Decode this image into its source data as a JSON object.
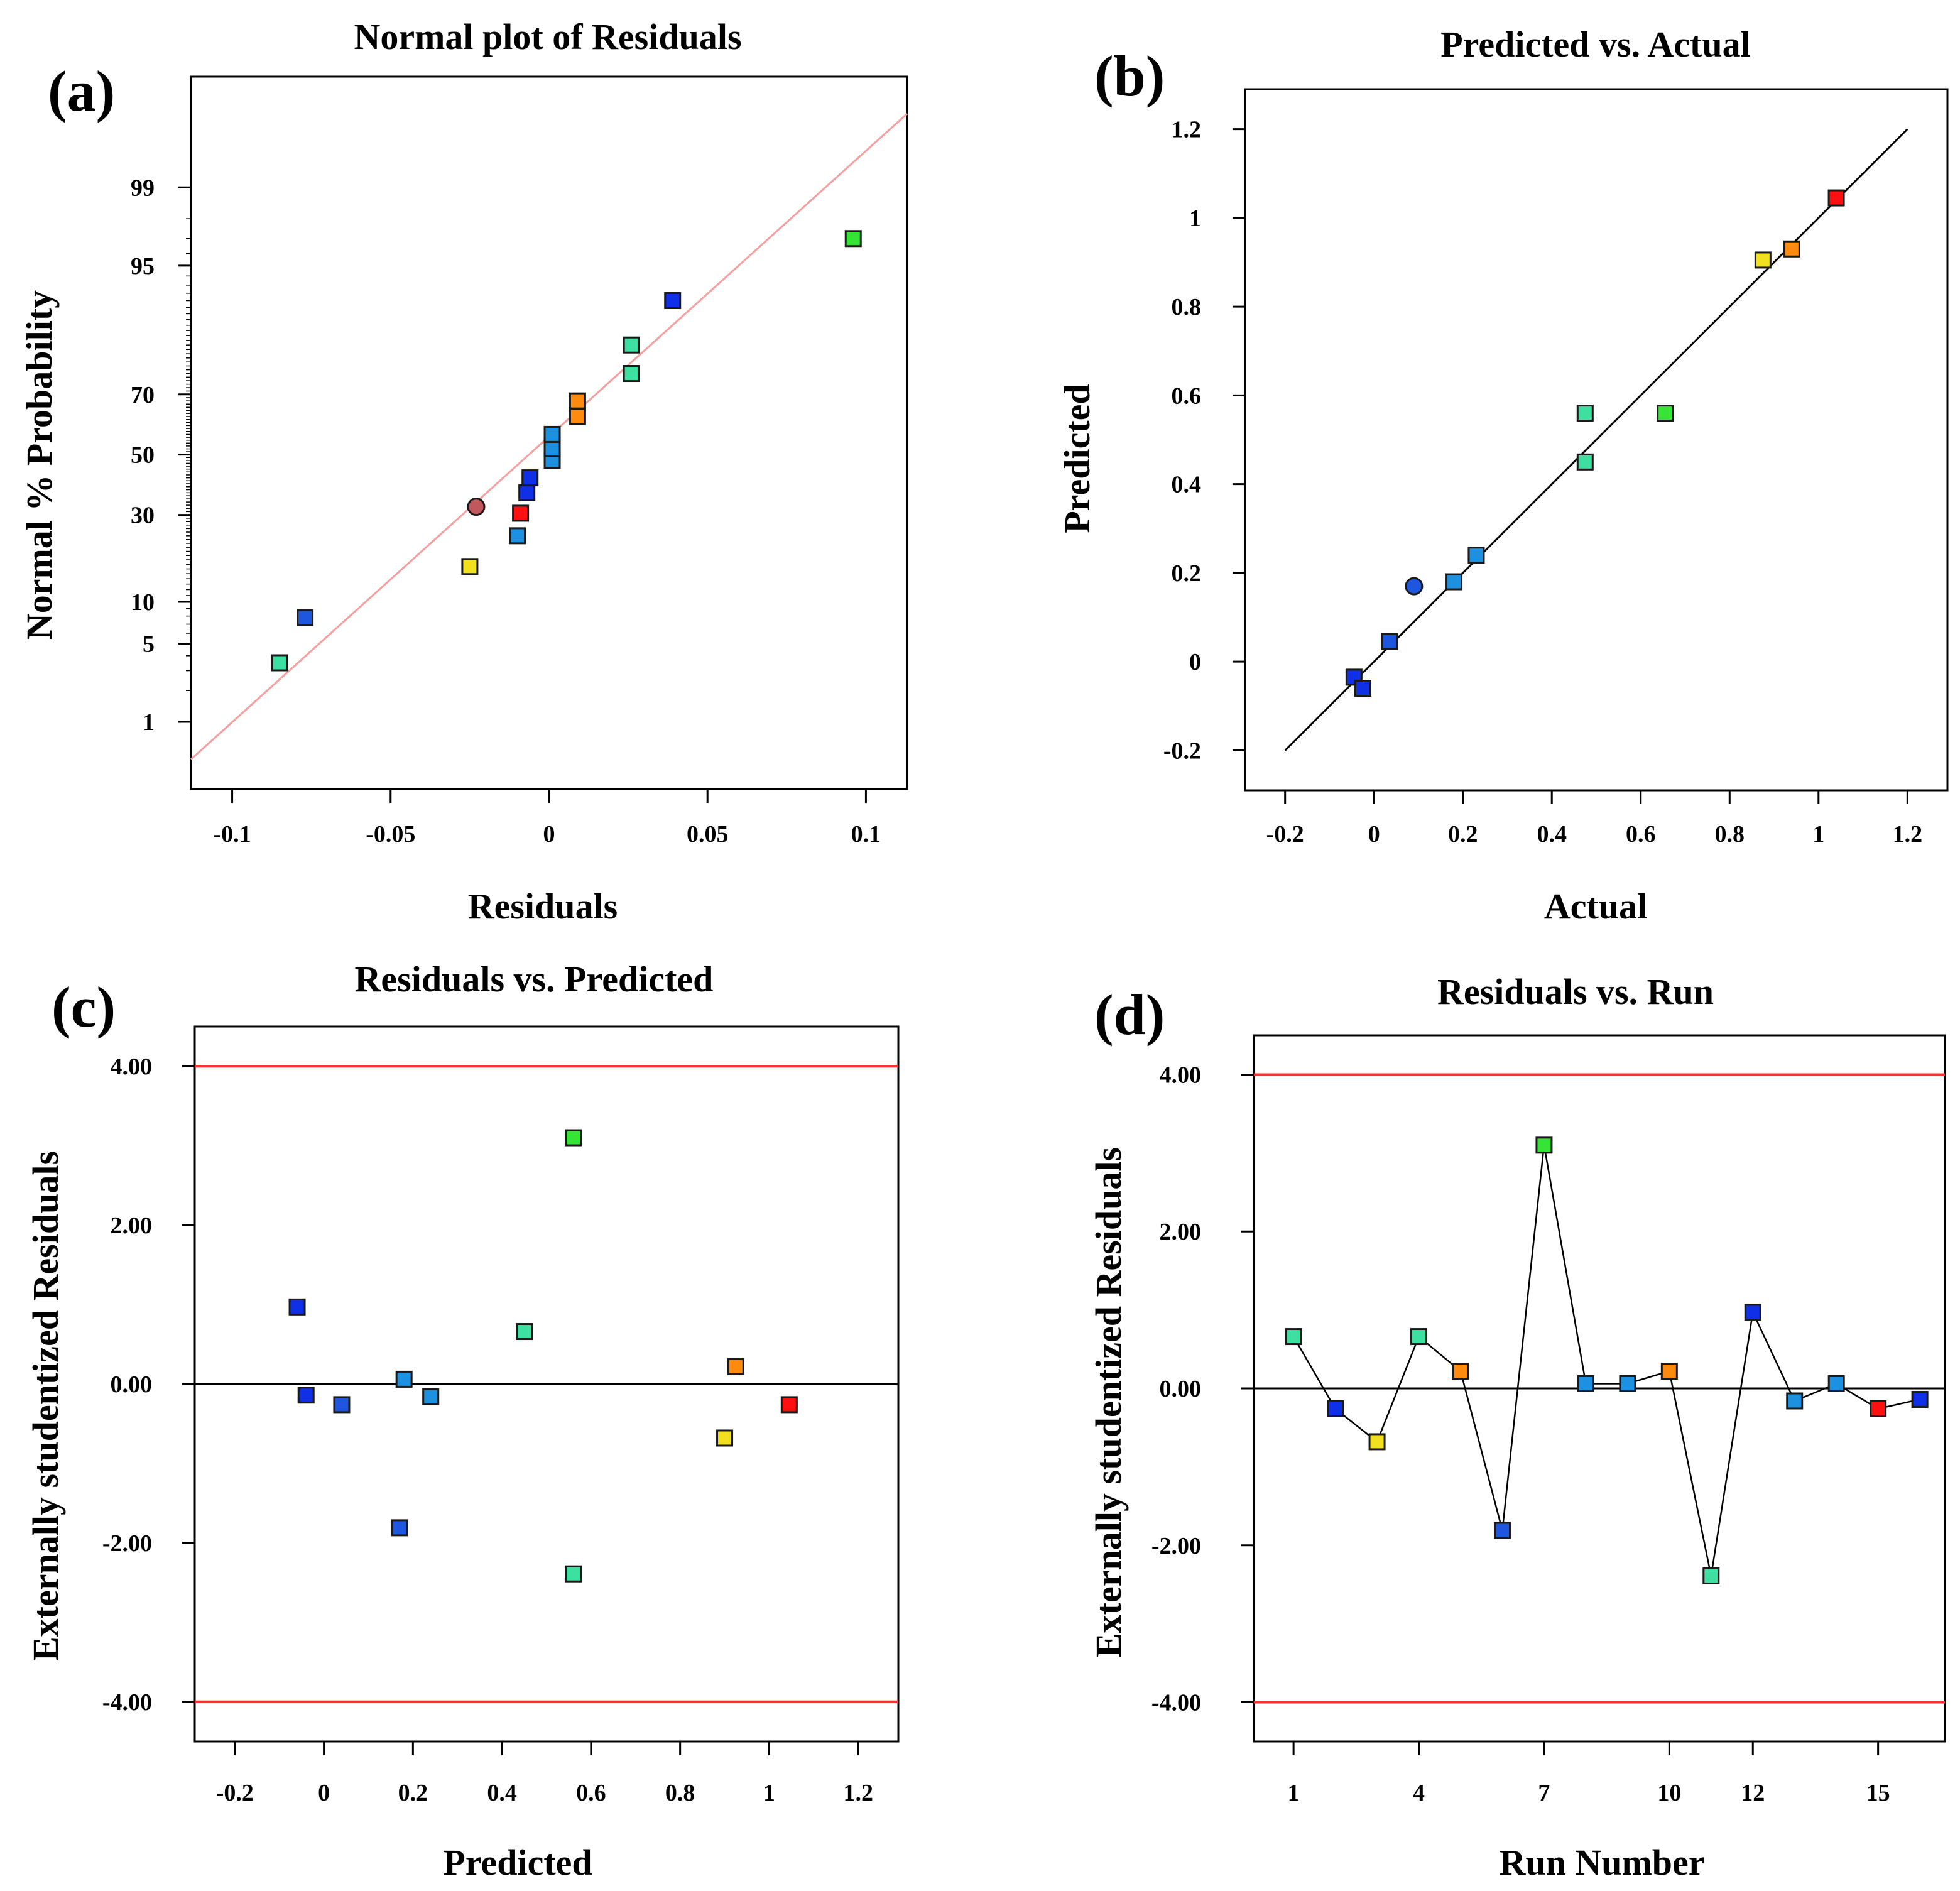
{
  "chart_data": [
    {
      "panel": "(a)",
      "type": "scatter",
      "title": "Normal plot of Residuals",
      "xlabel": "Residuals",
      "ylabel": "Normal % Probability",
      "xlim": [
        -0.113,
        0.113
      ],
      "x_ticks": [
        -0.1,
        -0.05,
        0,
        0.05,
        0.1
      ],
      "x_tick_labels": [
        "-0.1",
        "-0.05",
        "0",
        "0.05",
        "0.1"
      ],
      "ylim_percent": [
        0.18,
        99.95
      ],
      "y_ticks": [
        1,
        5,
        10,
        30,
        50,
        70,
        95,
        99
      ],
      "y_tick_labels": [
        "1",
        "5",
        "10",
        "30",
        "50",
        "70",
        "95",
        "99"
      ],
      "reference_line": {
        "from": [
          -0.113,
          0.4
        ],
        "to": [
          0.113,
          99.85
        ],
        "color": "#f4a0a0"
      },
      "points": [
        {
          "x": -0.085,
          "y": 3.5,
          "color": "#3ee0a2"
        },
        {
          "x": -0.077,
          "y": 7.8,
          "color": "#1e56e0"
        },
        {
          "x": -0.025,
          "y": 16.5,
          "color": "#f0e020"
        },
        {
          "x": -0.023,
          "y": 32.5,
          "color": "#c0585e",
          "marker": "circle"
        },
        {
          "x": -0.01,
          "y": 24.0,
          "color": "#1e90e0"
        },
        {
          "x": -0.009,
          "y": 30.5,
          "color": "#ff1010"
        },
        {
          "x": -0.007,
          "y": 37.0,
          "color": "#1030e8"
        },
        {
          "x": -0.006,
          "y": 42.0,
          "color": "#1030e8"
        },
        {
          "x": 0.001,
          "y": 48.0,
          "color": "#1e90e0"
        },
        {
          "x": 0.001,
          "y": 52.0,
          "color": "#1e90e0"
        },
        {
          "x": 0.001,
          "y": 57.0,
          "color": "#1e90e0"
        },
        {
          "x": 0.009,
          "y": 63.0,
          "color": "#ff8a10"
        },
        {
          "x": 0.009,
          "y": 68.0,
          "color": "#ff8a10"
        },
        {
          "x": 0.026,
          "y": 76.0,
          "color": "#3ee0a2"
        },
        {
          "x": 0.026,
          "y": 83.0,
          "color": "#3ee0a2"
        },
        {
          "x": 0.039,
          "y": 91.0,
          "color": "#1030e8"
        },
        {
          "x": 0.096,
          "y": 97.0,
          "color": "#36e436"
        }
      ]
    },
    {
      "panel": "(b)",
      "type": "scatter",
      "title": "Predicted vs. Actual",
      "xlabel": "Actual",
      "ylabel": "Predicted",
      "xlim": [
        -0.29,
        1.29
      ],
      "ylim": [
        -0.29,
        1.29
      ],
      "x_ticks": [
        -0.2,
        0,
        0.2,
        0.4,
        0.6,
        0.8,
        1,
        1.2
      ],
      "x_tick_labels": [
        "-0.2",
        "0",
        "0.2",
        "0.4",
        "0.6",
        "0.8",
        "1",
        "1.2"
      ],
      "y_ticks": [
        -0.2,
        0,
        0.2,
        0.4,
        0.6,
        0.8,
        1,
        1.2
      ],
      "y_tick_labels": [
        "-0.2",
        "0",
        "0.2",
        "0.4",
        "0.6",
        "0.8",
        "1",
        "1.2"
      ],
      "reference_line": {
        "from": [
          -0.2,
          -0.2
        ],
        "to": [
          1.2,
          1.2
        ],
        "color": "#000000"
      },
      "points": [
        {
          "x": -0.045,
          "y": -0.035,
          "color": "#1030e8"
        },
        {
          "x": -0.025,
          "y": -0.06,
          "color": "#1030e8"
        },
        {
          "x": 0.035,
          "y": 0.045,
          "color": "#1e56e0"
        },
        {
          "x": 0.09,
          "y": 0.17,
          "color": "#1e56e0",
          "marker": "circle"
        },
        {
          "x": 0.18,
          "y": 0.18,
          "color": "#1e90e0"
        },
        {
          "x": 0.23,
          "y": 0.24,
          "color": "#1e90e0"
        },
        {
          "x": 0.475,
          "y": 0.45,
          "color": "#3ee0a2"
        },
        {
          "x": 0.475,
          "y": 0.56,
          "color": "#3ee0a2"
        },
        {
          "x": 0.655,
          "y": 0.56,
          "color": "#36e436"
        },
        {
          "x": 0.875,
          "y": 0.905,
          "color": "#f0e020"
        },
        {
          "x": 0.94,
          "y": 0.93,
          "color": "#ff8a10"
        },
        {
          "x": 1.04,
          "y": 1.045,
          "color": "#ff1010"
        }
      ]
    },
    {
      "panel": "(c)",
      "type": "scatter",
      "title": "Residuals vs. Predicted",
      "xlabel": "Predicted",
      "ylabel": "Externally studentized Residuals",
      "xlim": [
        -0.29,
        1.29
      ],
      "ylim": [
        -4.5,
        4.5
      ],
      "x_ticks": [
        -0.2,
        0,
        0.2,
        0.4,
        0.6,
        0.8,
        1,
        1.2
      ],
      "x_tick_labels": [
        "-0.2",
        "0",
        "0.2",
        "0.4",
        "0.6",
        "0.8",
        "1",
        "1.2"
      ],
      "y_ticks": [
        -4,
        -2,
        0,
        2,
        4
      ],
      "y_tick_labels": [
        "-4.00",
        "-2.00",
        "0.00",
        "2.00",
        "4.00"
      ],
      "limit_lines": [
        4,
        -4
      ],
      "zero_line": 0,
      "points": [
        {
          "x": -0.06,
          "y": 0.97,
          "color": "#1030e8"
        },
        {
          "x": -0.04,
          "y": -0.14,
          "color": "#1030e8"
        },
        {
          "x": 0.04,
          "y": -0.26,
          "color": "#1e56e0"
        },
        {
          "x": 0.17,
          "y": -1.81,
          "color": "#1e56e0"
        },
        {
          "x": 0.18,
          "y": 0.06,
          "color": "#1e90e0"
        },
        {
          "x": 0.24,
          "y": -0.16,
          "color": "#1e90e0"
        },
        {
          "x": 0.45,
          "y": 0.66,
          "color": "#3ee0a2"
        },
        {
          "x": 0.56,
          "y": 3.1,
          "color": "#36e436"
        },
        {
          "x": 0.56,
          "y": -2.39,
          "color": "#3ee0a2"
        },
        {
          "x": 0.9,
          "y": -0.68,
          "color": "#f0e020"
        },
        {
          "x": 0.925,
          "y": 0.22,
          "color": "#ff8a10"
        },
        {
          "x": 1.045,
          "y": -0.26,
          "color": "#ff1010"
        }
      ]
    },
    {
      "panel": "(d)",
      "type": "line",
      "title": "Residuals vs. Run",
      "xlabel": "Run Number",
      "ylabel": "Externally studentized Residuals",
      "xlim": [
        0.05,
        16.6
      ],
      "ylim": [
        -4.5,
        4.5
      ],
      "x_ticks": [
        1,
        4,
        7,
        10,
        12,
        15
      ],
      "x_tick_labels": [
        "1",
        "4",
        "7",
        "10",
        "12",
        "15"
      ],
      "y_ticks": [
        -4,
        -2,
        0,
        2,
        4
      ],
      "y_tick_labels": [
        "-4.00",
        "-2.00",
        "0.00",
        "2.00",
        "4.00"
      ],
      "limit_lines": [
        4,
        -4
      ],
      "zero_line": 0,
      "x": [
        1,
        2,
        3,
        4,
        5,
        6,
        7,
        8,
        9,
        10,
        11,
        12,
        13,
        14,
        15,
        16
      ],
      "values": [
        0.66,
        -0.26,
        -0.68,
        0.66,
        0.22,
        -1.81,
        3.1,
        0.06,
        0.06,
        0.22,
        -2.39,
        0.97,
        -0.16,
        0.06,
        -0.26,
        -0.14
      ],
      "point_colors": [
        "#3ee0a2",
        "#1030e8",
        "#f0e020",
        "#3ee0a2",
        "#ff8a10",
        "#1e56e0",
        "#36e436",
        "#1e90e0",
        "#1e90e0",
        "#ff8a10",
        "#3ee0a2",
        "#1030e8",
        "#1e90e0",
        "#1e90e0",
        "#ff1010",
        "#1030e8"
      ]
    }
  ]
}
